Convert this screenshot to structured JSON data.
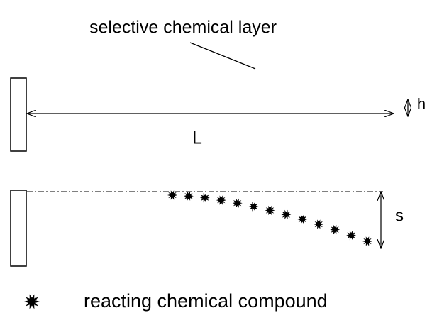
{
  "title": "selective chemical layer",
  "labels": {
    "height": "h",
    "length": "L",
    "deflection": "s"
  },
  "legend": "reacting chemical compound"
}
